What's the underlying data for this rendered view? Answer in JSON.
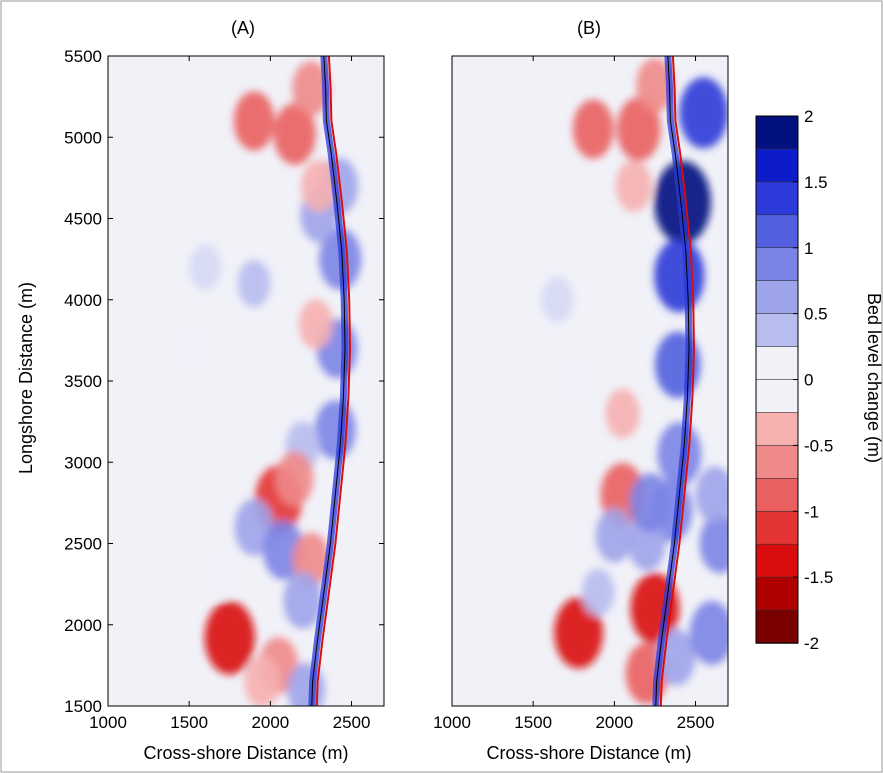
{
  "chart_data": {
    "type": "heatmap",
    "panels": [
      {
        "panel_label": "(A)",
        "xlabel": "Cross-shore Distance (m)",
        "ylabel": "Longshore Distance (m)",
        "xlim": [
          1000,
          2700
        ],
        "ylim": [
          1500,
          5500
        ],
        "xticks": [
          1000,
          1500,
          2000,
          2500
        ],
        "yticks": [
          1500,
          2000,
          2500,
          3000,
          3500,
          4000,
          4500,
          5000,
          5500
        ],
        "blobs": [
          {
            "x": 2430,
            "y": 4250,
            "v": 0.9
          },
          {
            "x": 2410,
            "y": 3700,
            "v": 0.8
          },
          {
            "x": 2400,
            "y": 3200,
            "v": 0.8
          },
          {
            "x": 2420,
            "y": 4700,
            "v": 0.7
          },
          {
            "x": 2300,
            "y": 4520,
            "v": 0.6
          },
          {
            "x": 2150,
            "y": 5020,
            "v": -0.9
          },
          {
            "x": 1900,
            "y": 5100,
            "v": -0.8
          },
          {
            "x": 2250,
            "y": 5300,
            "v": -0.6
          },
          {
            "x": 2300,
            "y": 4700,
            "v": -0.5
          },
          {
            "x": 2280,
            "y": 3850,
            "v": -0.4
          },
          {
            "x": 2200,
            "y": 3100,
            "v": 0.4
          },
          {
            "x": 2050,
            "y": 2770,
            "v": -1.2
          },
          {
            "x": 2150,
            "y": 2900,
            "v": -0.6
          },
          {
            "x": 1900,
            "y": 2600,
            "v": 0.7
          },
          {
            "x": 2080,
            "y": 2460,
            "v": 0.8
          },
          {
            "x": 2250,
            "y": 2400,
            "v": -0.6
          },
          {
            "x": 2200,
            "y": 2150,
            "v": 0.7
          },
          {
            "x": 1750,
            "y": 1920,
            "v": -1.4
          },
          {
            "x": 2050,
            "y": 1750,
            "v": -0.7
          },
          {
            "x": 1950,
            "y": 1650,
            "v": -0.5
          },
          {
            "x": 2220,
            "y": 1600,
            "v": 0.6
          },
          {
            "x": 1600,
            "y": 4200,
            "v": 0.25
          },
          {
            "x": 1500,
            "y": 3700,
            "v": 0.2
          },
          {
            "x": 1900,
            "y": 4100,
            "v": 0.3
          },
          {
            "x": 1700,
            "y": 2300,
            "v": 0.2
          }
        ]
      },
      {
        "panel_label": "(B)",
        "xlabel": "Cross-shore Distance (m)",
        "ylabel": "",
        "xlim": [
          1000,
          2700
        ],
        "ylim": [
          1500,
          5500
        ],
        "xticks": [
          1000,
          1500,
          2000,
          2500
        ],
        "yticks": [],
        "blobs": [
          {
            "x": 2420,
            "y": 4600,
            "v": 1.8
          },
          {
            "x": 2400,
            "y": 4150,
            "v": 1.4
          },
          {
            "x": 2390,
            "y": 3600,
            "v": 1.1
          },
          {
            "x": 2400,
            "y": 3050,
            "v": 1.0
          },
          {
            "x": 2550,
            "y": 5150,
            "v": 1.3
          },
          {
            "x": 2350,
            "y": 2700,
            "v": 0.9
          },
          {
            "x": 2200,
            "y": 2500,
            "v": 0.6
          },
          {
            "x": 2150,
            "y": 5050,
            "v": -1.0
          },
          {
            "x": 1870,
            "y": 5050,
            "v": -0.8
          },
          {
            "x": 2250,
            "y": 5320,
            "v": -0.6
          },
          {
            "x": 2120,
            "y": 4700,
            "v": -0.5
          },
          {
            "x": 2050,
            "y": 2800,
            "v": -1.0
          },
          {
            "x": 2220,
            "y": 2750,
            "v": 0.8
          },
          {
            "x": 2000,
            "y": 2550,
            "v": 0.6
          },
          {
            "x": 2250,
            "y": 2100,
            "v": -1.3
          },
          {
            "x": 1780,
            "y": 1950,
            "v": -1.3
          },
          {
            "x": 2200,
            "y": 1700,
            "v": -0.9
          },
          {
            "x": 2380,
            "y": 1800,
            "v": 0.7
          },
          {
            "x": 2600,
            "y": 1950,
            "v": 1.0
          },
          {
            "x": 2650,
            "y": 2500,
            "v": 0.8
          },
          {
            "x": 2620,
            "y": 2800,
            "v": 0.7
          },
          {
            "x": 1650,
            "y": 4000,
            "v": 0.25
          },
          {
            "x": 1750,
            "y": 3500,
            "v": 0.2
          },
          {
            "x": 2050,
            "y": 3300,
            "v": -0.4
          },
          {
            "x": 1900,
            "y": 2200,
            "v": 0.3
          }
        ]
      }
    ],
    "colorbar": {
      "label": "Bed level change (m)",
      "range": [
        -2,
        2
      ],
      "ticks": [
        2,
        1.5,
        1,
        0.5,
        0,
        -0.5,
        -1,
        -1.5,
        -2
      ],
      "levels": 16
    },
    "coastline": [
      [
        2330,
        5500
      ],
      [
        2340,
        5300
      ],
      [
        2345,
        5100
      ],
      [
        2375,
        4900
      ],
      [
        2410,
        4600
      ],
      [
        2440,
        4300
      ],
      [
        2455,
        4000
      ],
      [
        2460,
        3700
      ],
      [
        2450,
        3400
      ],
      [
        2430,
        3100
      ],
      [
        2400,
        2800
      ],
      [
        2370,
        2500
      ],
      [
        2330,
        2200
      ],
      [
        2290,
        1900
      ],
      [
        2260,
        1650
      ],
      [
        2255,
        1500
      ]
    ]
  }
}
